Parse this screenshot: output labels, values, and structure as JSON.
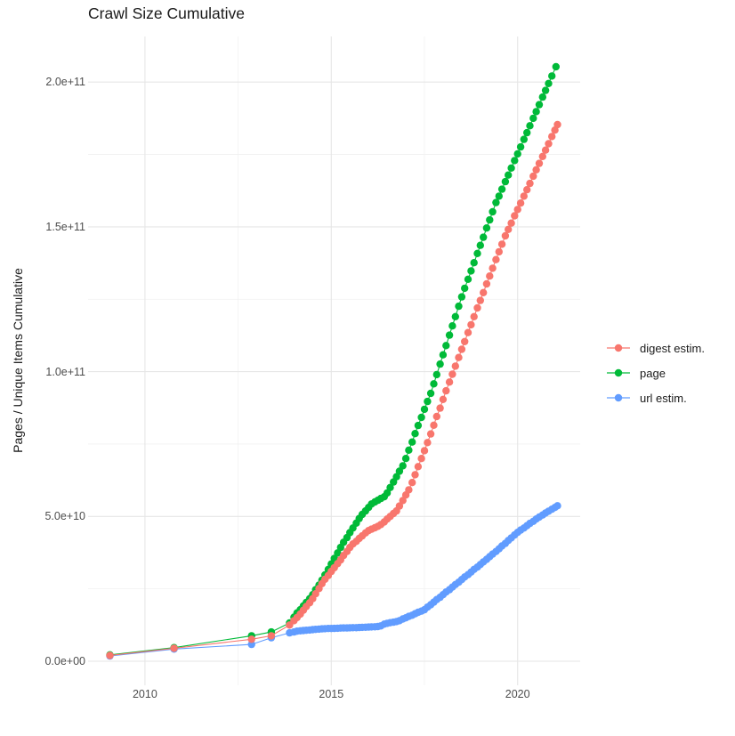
{
  "title": "Crawl Size Cumulative",
  "axes": {
    "y_label": "Pages / Unique Items Cumulative",
    "y_ticks": [
      "0.0e+00",
      "5.0e+10",
      "1.0e+11",
      "1.5e+11",
      "2.0e+11"
    ],
    "x_ticks": [
      "2010",
      "2015",
      "2020"
    ]
  },
  "legend": [
    {
      "label": "digest estim.",
      "color": "#F8766D"
    },
    {
      "label": "page",
      "color": "#00BA38"
    },
    {
      "label": "url estim.",
      "color": "#619CFF"
    }
  ],
  "chart_data": {
    "type": "line",
    "title": "Crawl Size Cumulative",
    "xlabel": "",
    "ylabel": "Pages / Unique Items Cumulative",
    "x_unit": "year (crawl date, fractional)",
    "y_unit": "cumulative count; point values below are in billions (1e9)",
    "xlim": [
      2008.5,
      2021.7
    ],
    "ylim": [
      0,
      215000000000.0
    ],
    "x_ticks": [
      2010,
      2015,
      2020
    ],
    "y_ticks": [
      0,
      50000000000.0,
      100000000000.0,
      150000000000.0,
      200000000000.0
    ],
    "grid": true,
    "legend_position": "right",
    "marker": "point-with-line",
    "series": [
      {
        "name": "digest estim.",
        "color": "#F8766D",
        "points": [
          [
            2009.06,
            2.0
          ],
          [
            2010.78,
            4.5
          ],
          [
            2012.86,
            7.6
          ],
          [
            2013.39,
            8.8
          ],
          [
            2013.88,
            12.5
          ],
          [
            2014.0,
            14.0
          ],
          [
            2014.08,
            15.1
          ],
          [
            2014.17,
            16.3
          ],
          [
            2014.25,
            17.6
          ],
          [
            2014.33,
            18.9
          ],
          [
            2014.42,
            20.2
          ],
          [
            2014.5,
            21.6
          ],
          [
            2014.58,
            23.3
          ],
          [
            2014.67,
            25.1
          ],
          [
            2014.75,
            26.8
          ],
          [
            2014.83,
            28.3
          ],
          [
            2014.92,
            29.6
          ],
          [
            2015.0,
            31.0
          ],
          [
            2015.08,
            32.3
          ],
          [
            2015.17,
            33.7
          ],
          [
            2015.25,
            35.0
          ],
          [
            2015.33,
            36.5
          ],
          [
            2015.42,
            37.9
          ],
          [
            2015.5,
            39.3
          ],
          [
            2015.58,
            40.5
          ],
          [
            2015.67,
            41.4
          ],
          [
            2015.75,
            42.4
          ],
          [
            2015.83,
            43.3
          ],
          [
            2015.92,
            44.3
          ],
          [
            2016.0,
            45.1
          ],
          [
            2016.08,
            45.6
          ],
          [
            2016.17,
            46.1
          ],
          [
            2016.25,
            46.6
          ],
          [
            2016.33,
            47.2
          ],
          [
            2016.42,
            48.1
          ],
          [
            2016.5,
            49.1
          ],
          [
            2016.58,
            50.0
          ],
          [
            2016.67,
            51.0
          ],
          [
            2016.75,
            51.9
          ],
          [
            2016.83,
            53.6
          ],
          [
            2016.92,
            55.5
          ],
          [
            2017.0,
            57.4
          ],
          [
            2017.08,
            59.2
          ],
          [
            2017.17,
            61.7
          ],
          [
            2017.25,
            64.4
          ],
          [
            2017.33,
            67.2
          ],
          [
            2017.42,
            70.0
          ],
          [
            2017.5,
            72.7
          ],
          [
            2017.58,
            75.5
          ],
          [
            2017.67,
            78.5
          ],
          [
            2017.75,
            81.5
          ],
          [
            2017.83,
            84.5
          ],
          [
            2017.92,
            87.4
          ],
          [
            2018.0,
            90.4
          ],
          [
            2018.08,
            93.4
          ],
          [
            2018.17,
            96.4
          ],
          [
            2018.25,
            99.1
          ],
          [
            2018.33,
            101.9
          ],
          [
            2018.42,
            104.9
          ],
          [
            2018.5,
            107.7
          ],
          [
            2018.58,
            110.4
          ],
          [
            2018.67,
            113.5
          ],
          [
            2018.75,
            116.2
          ],
          [
            2018.83,
            119.0
          ],
          [
            2018.92,
            122.0
          ],
          [
            2019.0,
            124.6
          ],
          [
            2019.08,
            127.3
          ],
          [
            2019.17,
            130.3
          ],
          [
            2019.25,
            133.0
          ],
          [
            2019.33,
            135.7
          ],
          [
            2019.42,
            138.7
          ],
          [
            2019.5,
            141.4
          ],
          [
            2019.58,
            144.0
          ],
          [
            2019.67,
            146.9
          ],
          [
            2019.75,
            149.1
          ],
          [
            2019.83,
            151.3
          ],
          [
            2019.92,
            153.8
          ],
          [
            2020.0,
            156.0
          ],
          [
            2020.08,
            158.2
          ],
          [
            2020.17,
            160.6
          ],
          [
            2020.25,
            162.8
          ],
          [
            2020.33,
            165.0
          ],
          [
            2020.42,
            167.5
          ],
          [
            2020.5,
            169.7
          ],
          [
            2020.58,
            171.9
          ],
          [
            2020.67,
            174.3
          ],
          [
            2020.75,
            176.5
          ],
          [
            2020.83,
            178.7
          ],
          [
            2020.92,
            181.2
          ],
          [
            2021.0,
            183.4
          ],
          [
            2021.07,
            185.3
          ]
        ]
      },
      {
        "name": "page",
        "color": "#00BA38",
        "points": [
          [
            2009.06,
            2.2
          ],
          [
            2010.78,
            4.7
          ],
          [
            2012.86,
            8.8
          ],
          [
            2013.39,
            10.1
          ],
          [
            2013.88,
            13.2
          ],
          [
            2014.0,
            15.2
          ],
          [
            2014.08,
            16.7
          ],
          [
            2014.17,
            17.8
          ],
          [
            2014.25,
            19.1
          ],
          [
            2014.33,
            20.3
          ],
          [
            2014.42,
            21.6
          ],
          [
            2014.5,
            23.0
          ],
          [
            2014.58,
            24.7
          ],
          [
            2014.67,
            26.3
          ],
          [
            2014.75,
            28.0
          ],
          [
            2014.83,
            29.8
          ],
          [
            2014.92,
            31.7
          ],
          [
            2015.0,
            33.6
          ],
          [
            2015.08,
            35.5
          ],
          [
            2015.17,
            37.4
          ],
          [
            2015.25,
            39.3
          ],
          [
            2015.33,
            41.1
          ],
          [
            2015.42,
            42.7
          ],
          [
            2015.5,
            44.4
          ],
          [
            2015.58,
            46.0
          ],
          [
            2015.67,
            47.7
          ],
          [
            2015.75,
            49.3
          ],
          [
            2015.83,
            50.7
          ],
          [
            2015.92,
            51.9
          ],
          [
            2016.0,
            53.1
          ],
          [
            2016.08,
            54.3
          ],
          [
            2016.17,
            55.0
          ],
          [
            2016.25,
            55.6
          ],
          [
            2016.33,
            56.2
          ],
          [
            2016.42,
            56.8
          ],
          [
            2016.5,
            58.1
          ],
          [
            2016.58,
            60.0
          ],
          [
            2016.67,
            61.9
          ],
          [
            2016.75,
            63.7
          ],
          [
            2016.83,
            65.6
          ],
          [
            2016.92,
            67.5
          ],
          [
            2017.0,
            70.0
          ],
          [
            2017.08,
            72.9
          ],
          [
            2017.17,
            75.7
          ],
          [
            2017.25,
            78.6
          ],
          [
            2017.33,
            81.4
          ],
          [
            2017.42,
            84.2
          ],
          [
            2017.5,
            87.0
          ],
          [
            2017.58,
            89.7
          ],
          [
            2017.67,
            92.5
          ],
          [
            2017.75,
            95.8
          ],
          [
            2017.83,
            99.0
          ],
          [
            2017.92,
            102.6
          ],
          [
            2018.0,
            105.8
          ],
          [
            2018.08,
            109.0
          ],
          [
            2018.17,
            112.6
          ],
          [
            2018.25,
            115.8
          ],
          [
            2018.33,
            119.0
          ],
          [
            2018.42,
            122.6
          ],
          [
            2018.5,
            125.8
          ],
          [
            2018.58,
            128.8
          ],
          [
            2018.67,
            131.9
          ],
          [
            2018.75,
            134.8
          ],
          [
            2018.83,
            137.6
          ],
          [
            2018.92,
            140.8
          ],
          [
            2019.0,
            143.6
          ],
          [
            2019.08,
            146.4
          ],
          [
            2019.17,
            149.6
          ],
          [
            2019.25,
            152.4
          ],
          [
            2019.33,
            155.2
          ],
          [
            2019.42,
            158.4
          ],
          [
            2019.5,
            160.6
          ],
          [
            2019.58,
            163.0
          ],
          [
            2019.67,
            165.6
          ],
          [
            2019.75,
            167.9
          ],
          [
            2019.83,
            170.3
          ],
          [
            2019.92,
            172.9
          ],
          [
            2020.0,
            175.2
          ],
          [
            2020.08,
            177.6
          ],
          [
            2020.17,
            180.2
          ],
          [
            2020.25,
            182.5
          ],
          [
            2020.33,
            184.9
          ],
          [
            2020.42,
            187.5
          ],
          [
            2020.5,
            189.8
          ],
          [
            2020.58,
            192.2
          ],
          [
            2020.67,
            194.8
          ],
          [
            2020.75,
            197.1
          ],
          [
            2020.83,
            199.5
          ],
          [
            2020.92,
            202.1
          ],
          [
            2021.03,
            205.3
          ]
        ]
      },
      {
        "name": "url estim.",
        "color": "#619CFF",
        "points": [
          [
            2009.06,
            1.8
          ],
          [
            2010.78,
            4.2
          ],
          [
            2012.86,
            5.8
          ],
          [
            2013.39,
            8.1
          ],
          [
            2013.88,
            9.8
          ],
          [
            2014.0,
            10.1
          ],
          [
            2014.08,
            10.4
          ],
          [
            2014.17,
            10.5
          ],
          [
            2014.25,
            10.6
          ],
          [
            2014.33,
            10.7
          ],
          [
            2014.42,
            10.8
          ],
          [
            2014.5,
            10.9
          ],
          [
            2014.58,
            11.0
          ],
          [
            2014.67,
            11.1
          ],
          [
            2014.75,
            11.2
          ],
          [
            2014.83,
            11.25
          ],
          [
            2014.92,
            11.3
          ],
          [
            2015.0,
            11.3
          ],
          [
            2015.08,
            11.35
          ],
          [
            2015.17,
            11.4
          ],
          [
            2015.25,
            11.45
          ],
          [
            2015.33,
            11.5
          ],
          [
            2015.42,
            11.5
          ],
          [
            2015.5,
            11.55
          ],
          [
            2015.58,
            11.6
          ],
          [
            2015.67,
            11.6
          ],
          [
            2015.75,
            11.65
          ],
          [
            2015.83,
            11.7
          ],
          [
            2015.92,
            11.75
          ],
          [
            2016.0,
            11.8
          ],
          [
            2016.08,
            11.86
          ],
          [
            2016.17,
            11.9
          ],
          [
            2016.25,
            12.0
          ],
          [
            2016.33,
            12.2
          ],
          [
            2016.42,
            12.8
          ],
          [
            2016.5,
            13.1
          ],
          [
            2016.58,
            13.3
          ],
          [
            2016.67,
            13.5
          ],
          [
            2016.75,
            13.7
          ],
          [
            2016.83,
            14.0
          ],
          [
            2016.92,
            14.6
          ],
          [
            2017.0,
            15.0
          ],
          [
            2017.08,
            15.5
          ],
          [
            2017.17,
            15.9
          ],
          [
            2017.25,
            16.4
          ],
          [
            2017.33,
            16.9
          ],
          [
            2017.42,
            17.3
          ],
          [
            2017.5,
            17.8
          ],
          [
            2017.58,
            18.7
          ],
          [
            2017.67,
            19.5
          ],
          [
            2017.75,
            20.4
          ],
          [
            2017.83,
            21.3
          ],
          [
            2017.92,
            22.1
          ],
          [
            2018.0,
            23.0
          ],
          [
            2018.08,
            23.9
          ],
          [
            2018.17,
            24.7
          ],
          [
            2018.25,
            25.6
          ],
          [
            2018.33,
            26.5
          ],
          [
            2018.42,
            27.3
          ],
          [
            2018.5,
            28.2
          ],
          [
            2018.58,
            29.1
          ],
          [
            2018.67,
            29.9
          ],
          [
            2018.75,
            30.8
          ],
          [
            2018.83,
            31.7
          ],
          [
            2018.92,
            32.5
          ],
          [
            2019.0,
            33.4
          ],
          [
            2019.08,
            34.3
          ],
          [
            2019.17,
            35.2
          ],
          [
            2019.25,
            36.1
          ],
          [
            2019.33,
            37.0
          ],
          [
            2019.42,
            37.9
          ],
          [
            2019.5,
            38.8
          ],
          [
            2019.58,
            39.8
          ],
          [
            2019.67,
            40.7
          ],
          [
            2019.75,
            41.7
          ],
          [
            2019.83,
            42.6
          ],
          [
            2019.92,
            43.6
          ],
          [
            2020.0,
            44.5
          ],
          [
            2020.08,
            45.3
          ],
          [
            2020.17,
            46.0
          ],
          [
            2020.25,
            46.8
          ],
          [
            2020.33,
            47.6
          ],
          [
            2020.42,
            48.3
          ],
          [
            2020.5,
            49.1
          ],
          [
            2020.58,
            49.8
          ],
          [
            2020.67,
            50.5
          ],
          [
            2020.75,
            51.2
          ],
          [
            2020.83,
            51.8
          ],
          [
            2020.92,
            52.5
          ],
          [
            2021.0,
            53.1
          ],
          [
            2021.07,
            53.7
          ]
        ]
      }
    ]
  }
}
